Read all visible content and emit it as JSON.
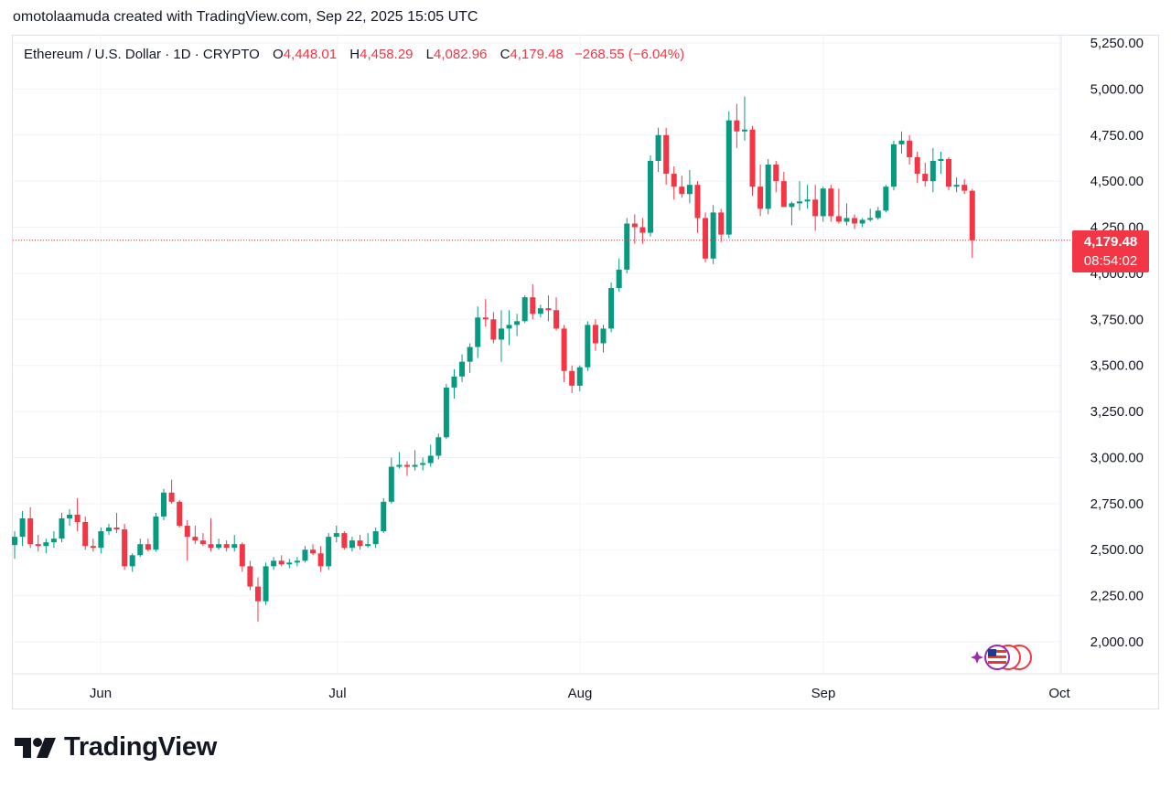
{
  "caption": "omotolaamuda created with TradingView.com, Sep 22, 2025 15:05 UTC",
  "legend": {
    "symbol": "Ethereum / U.S. Dollar · 1D · CRYPTO",
    "o_label": "O",
    "o_value": "4,448.01",
    "h_label": "H",
    "h_value": "4,458.29",
    "l_label": "L",
    "l_value": "4,082.96",
    "c_label": "C",
    "c_value": "4,179.48",
    "change": "−268.55 (−6.04%)"
  },
  "price_tag": {
    "price": "4,179.48",
    "countdown": "08:54:02"
  },
  "brand": {
    "name": "TradingView"
  },
  "colors": {
    "up": "#089981",
    "down": "#f23645",
    "grid": "#f0f3fa",
    "text": "#131722"
  },
  "chart_data": {
    "type": "candlestick",
    "title": "Ethereum / U.S. Dollar · 1D · CRYPTO",
    "y_ticks": [
      "2,000.00",
      "2,250.00",
      "2,500.00",
      "2,750.00",
      "3,000.00",
      "3,250.00",
      "3,500.00",
      "3,750.00",
      "4,000.00",
      "4,250.00",
      "4,500.00",
      "4,750.00",
      "5,000.00",
      "5,250.00"
    ],
    "x_ticks": [
      "Jun",
      "Jul",
      "Aug",
      "Sep",
      "Oct"
    ],
    "ylim": [
      1900,
      5270
    ],
    "last_price": 4179.48,
    "grid": true,
    "candles": [
      {
        "o": 2525,
        "h": 2600,
        "l": 2450,
        "c": 2570
      },
      {
        "o": 2570,
        "h": 2710,
        "l": 2520,
        "c": 2670
      },
      {
        "o": 2670,
        "h": 2730,
        "l": 2510,
        "c": 2530
      },
      {
        "o": 2530,
        "h": 2580,
        "l": 2490,
        "c": 2520
      },
      {
        "o": 2520,
        "h": 2560,
        "l": 2480,
        "c": 2540
      },
      {
        "o": 2540,
        "h": 2600,
        "l": 2510,
        "c": 2560
      },
      {
        "o": 2560,
        "h": 2700,
        "l": 2540,
        "c": 2670
      },
      {
        "o": 2670,
        "h": 2720,
        "l": 2630,
        "c": 2690
      },
      {
        "o": 2690,
        "h": 2780,
        "l": 2600,
        "c": 2650
      },
      {
        "o": 2650,
        "h": 2680,
        "l": 2500,
        "c": 2520
      },
      {
        "o": 2520,
        "h": 2560,
        "l": 2490,
        "c": 2510
      },
      {
        "o": 2510,
        "h": 2620,
        "l": 2480,
        "c": 2600
      },
      {
        "o": 2600,
        "h": 2640,
        "l": 2580,
        "c": 2620
      },
      {
        "o": 2620,
        "h": 2700,
        "l": 2590,
        "c": 2610
      },
      {
        "o": 2610,
        "h": 2640,
        "l": 2390,
        "c": 2410
      },
      {
        "o": 2410,
        "h": 2480,
        "l": 2380,
        "c": 2470
      },
      {
        "o": 2470,
        "h": 2560,
        "l": 2460,
        "c": 2530
      },
      {
        "o": 2530,
        "h": 2560,
        "l": 2490,
        "c": 2500
      },
      {
        "o": 2500,
        "h": 2700,
        "l": 2490,
        "c": 2680
      },
      {
        "o": 2680,
        "h": 2830,
        "l": 2660,
        "c": 2810
      },
      {
        "o": 2810,
        "h": 2880,
        "l": 2750,
        "c": 2760
      },
      {
        "o": 2760,
        "h": 2770,
        "l": 2620,
        "c": 2630
      },
      {
        "o": 2630,
        "h": 2660,
        "l": 2440,
        "c": 2570
      },
      {
        "o": 2570,
        "h": 2630,
        "l": 2530,
        "c": 2550
      },
      {
        "o": 2550,
        "h": 2590,
        "l": 2520,
        "c": 2530
      },
      {
        "o": 2530,
        "h": 2670,
        "l": 2490,
        "c": 2510
      },
      {
        "o": 2510,
        "h": 2560,
        "l": 2500,
        "c": 2530
      },
      {
        "o": 2530,
        "h": 2550,
        "l": 2490,
        "c": 2510
      },
      {
        "o": 2510,
        "h": 2580,
        "l": 2490,
        "c": 2530
      },
      {
        "o": 2530,
        "h": 2540,
        "l": 2380,
        "c": 2410
      },
      {
        "o": 2410,
        "h": 2440,
        "l": 2280,
        "c": 2300
      },
      {
        "o": 2300,
        "h": 2350,
        "l": 2110,
        "c": 2220
      },
      {
        "o": 2220,
        "h": 2430,
        "l": 2200,
        "c": 2410
      },
      {
        "o": 2410,
        "h": 2460,
        "l": 2390,
        "c": 2440
      },
      {
        "o": 2440,
        "h": 2470,
        "l": 2410,
        "c": 2420
      },
      {
        "o": 2420,
        "h": 2450,
        "l": 2400,
        "c": 2430
      },
      {
        "o": 2430,
        "h": 2460,
        "l": 2410,
        "c": 2440
      },
      {
        "o": 2440,
        "h": 2520,
        "l": 2430,
        "c": 2500
      },
      {
        "o": 2500,
        "h": 2530,
        "l": 2470,
        "c": 2480
      },
      {
        "o": 2480,
        "h": 2520,
        "l": 2380,
        "c": 2410
      },
      {
        "o": 2410,
        "h": 2590,
        "l": 2390,
        "c": 2570
      },
      {
        "o": 2570,
        "h": 2630,
        "l": 2540,
        "c": 2590
      },
      {
        "o": 2590,
        "h": 2600,
        "l": 2500,
        "c": 2510
      },
      {
        "o": 2510,
        "h": 2570,
        "l": 2490,
        "c": 2550
      },
      {
        "o": 2550,
        "h": 2580,
        "l": 2500,
        "c": 2520
      },
      {
        "o": 2520,
        "h": 2590,
        "l": 2510,
        "c": 2530
      },
      {
        "o": 2530,
        "h": 2620,
        "l": 2510,
        "c": 2600
      },
      {
        "o": 2600,
        "h": 2780,
        "l": 2590,
        "c": 2760
      },
      {
        "o": 2760,
        "h": 3000,
        "l": 2750,
        "c": 2950
      },
      {
        "o": 2950,
        "h": 3030,
        "l": 2940,
        "c": 2960
      },
      {
        "o": 2960,
        "h": 2980,
        "l": 2900,
        "c": 2950
      },
      {
        "o": 2950,
        "h": 3040,
        "l": 2930,
        "c": 2960
      },
      {
        "o": 2960,
        "h": 3000,
        "l": 2930,
        "c": 2970
      },
      {
        "o": 2970,
        "h": 3070,
        "l": 2950,
        "c": 3010
      },
      {
        "o": 3010,
        "h": 3130,
        "l": 2990,
        "c": 3110
      },
      {
        "o": 3110,
        "h": 3400,
        "l": 3100,
        "c": 3380
      },
      {
        "o": 3380,
        "h": 3480,
        "l": 3320,
        "c": 3440
      },
      {
        "o": 3440,
        "h": 3560,
        "l": 3410,
        "c": 3520
      },
      {
        "o": 3520,
        "h": 3620,
        "l": 3460,
        "c": 3600
      },
      {
        "o": 3600,
        "h": 3820,
        "l": 3540,
        "c": 3760
      },
      {
        "o": 3760,
        "h": 3860,
        "l": 3710,
        "c": 3750
      },
      {
        "o": 3750,
        "h": 3790,
        "l": 3620,
        "c": 3640
      },
      {
        "o": 3640,
        "h": 3800,
        "l": 3520,
        "c": 3700
      },
      {
        "o": 3700,
        "h": 3800,
        "l": 3610,
        "c": 3720
      },
      {
        "o": 3720,
        "h": 3780,
        "l": 3660,
        "c": 3740
      },
      {
        "o": 3740,
        "h": 3880,
        "l": 3730,
        "c": 3870
      },
      {
        "o": 3870,
        "h": 3940,
        "l": 3750,
        "c": 3780
      },
      {
        "o": 3780,
        "h": 3830,
        "l": 3760,
        "c": 3810
      },
      {
        "o": 3810,
        "h": 3880,
        "l": 3740,
        "c": 3800
      },
      {
        "o": 3800,
        "h": 3870,
        "l": 3690,
        "c": 3700
      },
      {
        "o": 3700,
        "h": 3720,
        "l": 3410,
        "c": 3470
      },
      {
        "o": 3470,
        "h": 3500,
        "l": 3350,
        "c": 3390
      },
      {
        "o": 3390,
        "h": 3500,
        "l": 3360,
        "c": 3490
      },
      {
        "o": 3490,
        "h": 3740,
        "l": 3470,
        "c": 3720
      },
      {
        "o": 3720,
        "h": 3750,
        "l": 3580,
        "c": 3620
      },
      {
        "o": 3620,
        "h": 3720,
        "l": 3570,
        "c": 3700
      },
      {
        "o": 3700,
        "h": 3950,
        "l": 3680,
        "c": 3920
      },
      {
        "o": 3920,
        "h": 4080,
        "l": 3900,
        "c": 4020
      },
      {
        "o": 4020,
        "h": 4300,
        "l": 4000,
        "c": 4270
      },
      {
        "o": 4270,
        "h": 4320,
        "l": 4160,
        "c": 4250
      },
      {
        "o": 4250,
        "h": 4300,
        "l": 4160,
        "c": 4220
      },
      {
        "o": 4220,
        "h": 4640,
        "l": 4200,
        "c": 4610
      },
      {
        "o": 4610,
        "h": 4790,
        "l": 4550,
        "c": 4750
      },
      {
        "o": 4750,
        "h": 4790,
        "l": 4480,
        "c": 4540
      },
      {
        "o": 4540,
        "h": 4580,
        "l": 4400,
        "c": 4470
      },
      {
        "o": 4470,
        "h": 4530,
        "l": 4410,
        "c": 4430
      },
      {
        "o": 4430,
        "h": 4560,
        "l": 4380,
        "c": 4480
      },
      {
        "o": 4480,
        "h": 4500,
        "l": 4220,
        "c": 4300
      },
      {
        "o": 4300,
        "h": 4330,
        "l": 4060,
        "c": 4080
      },
      {
        "o": 4080,
        "h": 4370,
        "l": 4050,
        "c": 4330
      },
      {
        "o": 4330,
        "h": 4350,
        "l": 4170,
        "c": 4210
      },
      {
        "o": 4210,
        "h": 4880,
        "l": 4190,
        "c": 4830
      },
      {
        "o": 4830,
        "h": 4920,
        "l": 4680,
        "c": 4770
      },
      {
        "o": 4770,
        "h": 4960,
        "l": 4720,
        "c": 4780
      },
      {
        "o": 4780,
        "h": 4800,
        "l": 4420,
        "c": 4470
      },
      {
        "o": 4470,
        "h": 4590,
        "l": 4310,
        "c": 4350
      },
      {
        "o": 4350,
        "h": 4620,
        "l": 4320,
        "c": 4590
      },
      {
        "o": 4590,
        "h": 4610,
        "l": 4440,
        "c": 4500
      },
      {
        "o": 4500,
        "h": 4550,
        "l": 4360,
        "c": 4360
      },
      {
        "o": 4360,
        "h": 4390,
        "l": 4260,
        "c": 4380
      },
      {
        "o": 4380,
        "h": 4500,
        "l": 4340,
        "c": 4390
      },
      {
        "o": 4390,
        "h": 4480,
        "l": 4350,
        "c": 4400
      },
      {
        "o": 4400,
        "h": 4480,
        "l": 4230,
        "c": 4310
      },
      {
        "o": 4310,
        "h": 4470,
        "l": 4280,
        "c": 4460
      },
      {
        "o": 4460,
        "h": 4480,
        "l": 4280,
        "c": 4310
      },
      {
        "o": 4310,
        "h": 4460,
        "l": 4270,
        "c": 4280
      },
      {
        "o": 4280,
        "h": 4380,
        "l": 4260,
        "c": 4300
      },
      {
        "o": 4300,
        "h": 4320,
        "l": 4240,
        "c": 4270
      },
      {
        "o": 4270,
        "h": 4300,
        "l": 4250,
        "c": 4290
      },
      {
        "o": 4290,
        "h": 4350,
        "l": 4280,
        "c": 4300
      },
      {
        "o": 4300,
        "h": 4360,
        "l": 4290,
        "c": 4340
      },
      {
        "o": 4340,
        "h": 4480,
        "l": 4330,
        "c": 4470
      },
      {
        "o": 4470,
        "h": 4720,
        "l": 4450,
        "c": 4700
      },
      {
        "o": 4700,
        "h": 4770,
        "l": 4650,
        "c": 4720
      },
      {
        "o": 4720,
        "h": 4750,
        "l": 4590,
        "c": 4630
      },
      {
        "o": 4630,
        "h": 4660,
        "l": 4490,
        "c": 4540
      },
      {
        "o": 4540,
        "h": 4600,
        "l": 4470,
        "c": 4500
      },
      {
        "o": 4500,
        "h": 4680,
        "l": 4440,
        "c": 4610
      },
      {
        "o": 4610,
        "h": 4660,
        "l": 4540,
        "c": 4620
      },
      {
        "o": 4620,
        "h": 4630,
        "l": 4450,
        "c": 4470
      },
      {
        "o": 4470,
        "h": 4520,
        "l": 4440,
        "c": 4480
      },
      {
        "o": 4480,
        "h": 4510,
        "l": 4430,
        "c": 4448.01
      },
      {
        "o": 4448.01,
        "h": 4458.29,
        "l": 4082.96,
        "c": 4179.48
      }
    ]
  }
}
